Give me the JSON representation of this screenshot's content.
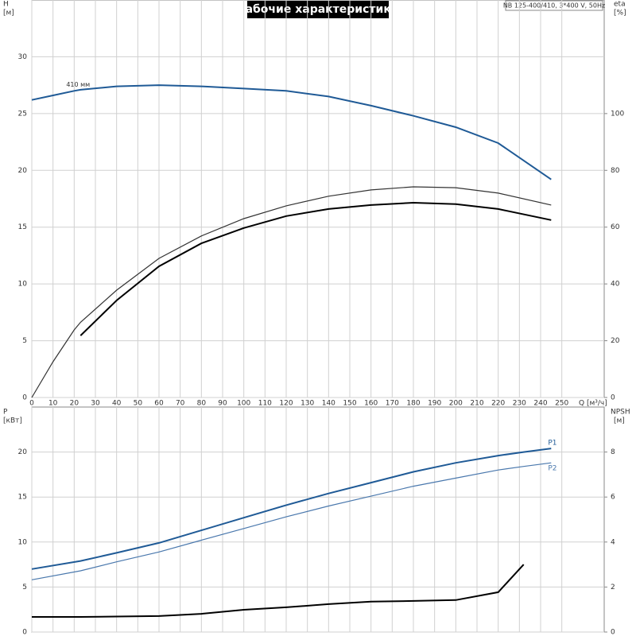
{
  "chart_data": [
    {
      "type": "line",
      "title": "Рабочие характеристики",
      "subtitle": "NB 125-400/410, 3*400 V, 50Hz",
      "xlabel": "Q [м³/ч]",
      "ylabel": "H",
      "yunit": "[м]",
      "y2label": "eta",
      "y2unit": "[%]",
      "x": [
        0,
        10,
        20,
        23,
        40,
        60,
        80,
        100,
        120,
        140,
        160,
        180,
        200,
        220,
        245
      ],
      "xlim": [
        0,
        270
      ],
      "xticks": [
        0,
        10,
        20,
        30,
        40,
        50,
        60,
        70,
        80,
        90,
        100,
        110,
        120,
        130,
        140,
        150,
        160,
        170,
        180,
        190,
        200,
        210,
        220,
        230,
        240,
        250
      ],
      "ylim": [
        0,
        35
      ],
      "yticks": [
        0,
        5,
        10,
        15,
        20,
        25,
        30
      ],
      "y2lim": [
        0,
        140
      ],
      "y2ticks": [
        0,
        20,
        40,
        60,
        80,
        100
      ],
      "grid": true,
      "series": [
        {
          "name": "410 мм",
          "color": "#1f5a96",
          "values": [
            26.2,
            26.6,
            27.0,
            27.1,
            27.4,
            27.5,
            27.4,
            27.2,
            27.0,
            26.5,
            25.7,
            24.8,
            23.8,
            22.4,
            19.2
          ]
        },
        {
          "color": "#333333",
          "axis": "y2",
          "values": [
            0,
            12.6,
            23.8,
            26.5,
            37.8,
            49,
            56.9,
            63,
            67.5,
            70.9,
            73.1,
            74.2,
            73.9,
            72,
            67.8
          ]
        },
        {
          "color": "#000000",
          "axis": "y2",
          "values": [
            null,
            null,
            null,
            21.8,
            34.2,
            46.2,
            54.3,
            59.7,
            63.9,
            66.4,
            67.8,
            68.6,
            68.1,
            66.4,
            62.5
          ]
        }
      ]
    },
    {
      "type": "line",
      "ylabel": "P",
      "yunit": "[кВт]",
      "y2label": "NPSH",
      "y2unit": "[м]",
      "x": [
        0,
        23,
        40,
        60,
        80,
        100,
        120,
        140,
        160,
        180,
        200,
        220,
        232,
        245
      ],
      "xlim": [
        0,
        270
      ],
      "xticks": [
        0,
        10,
        20,
        30,
        40,
        50,
        60,
        70,
        80,
        90,
        100,
        110,
        120,
        130,
        140,
        150,
        160,
        170,
        180,
        190,
        200,
        210,
        220,
        230,
        240,
        250
      ],
      "ylim": [
        0,
        25
      ],
      "yticks": [
        0,
        5,
        10,
        15,
        20
      ],
      "y2lim": [
        0,
        10
      ],
      "y2ticks": [
        0,
        2,
        4,
        6,
        8
      ],
      "grid": true,
      "series": [
        {
          "name": "P1",
          "color": "#1f5a96",
          "values": [
            7.0,
            7.9,
            8.8,
            9.9,
            11.3,
            12.7,
            14.1,
            15.4,
            16.6,
            17.8,
            18.8,
            19.6,
            20.0,
            20.4
          ]
        },
        {
          "name": "P2",
          "color": "#4a78ad",
          "values": [
            5.8,
            6.8,
            7.8,
            8.9,
            10.2,
            11.5,
            12.8,
            14.0,
            15.1,
            16.2,
            17.1,
            18.0,
            18.4,
            18.8
          ]
        },
        {
          "color": "#000000",
          "axis": "y2",
          "values": [
            0.67,
            0.67,
            0.69,
            0.71,
            0.81,
            0.99,
            1.1,
            1.24,
            1.35,
            1.38,
            1.42,
            1.77,
            3.0,
            null
          ]
        }
      ]
    }
  ]
}
